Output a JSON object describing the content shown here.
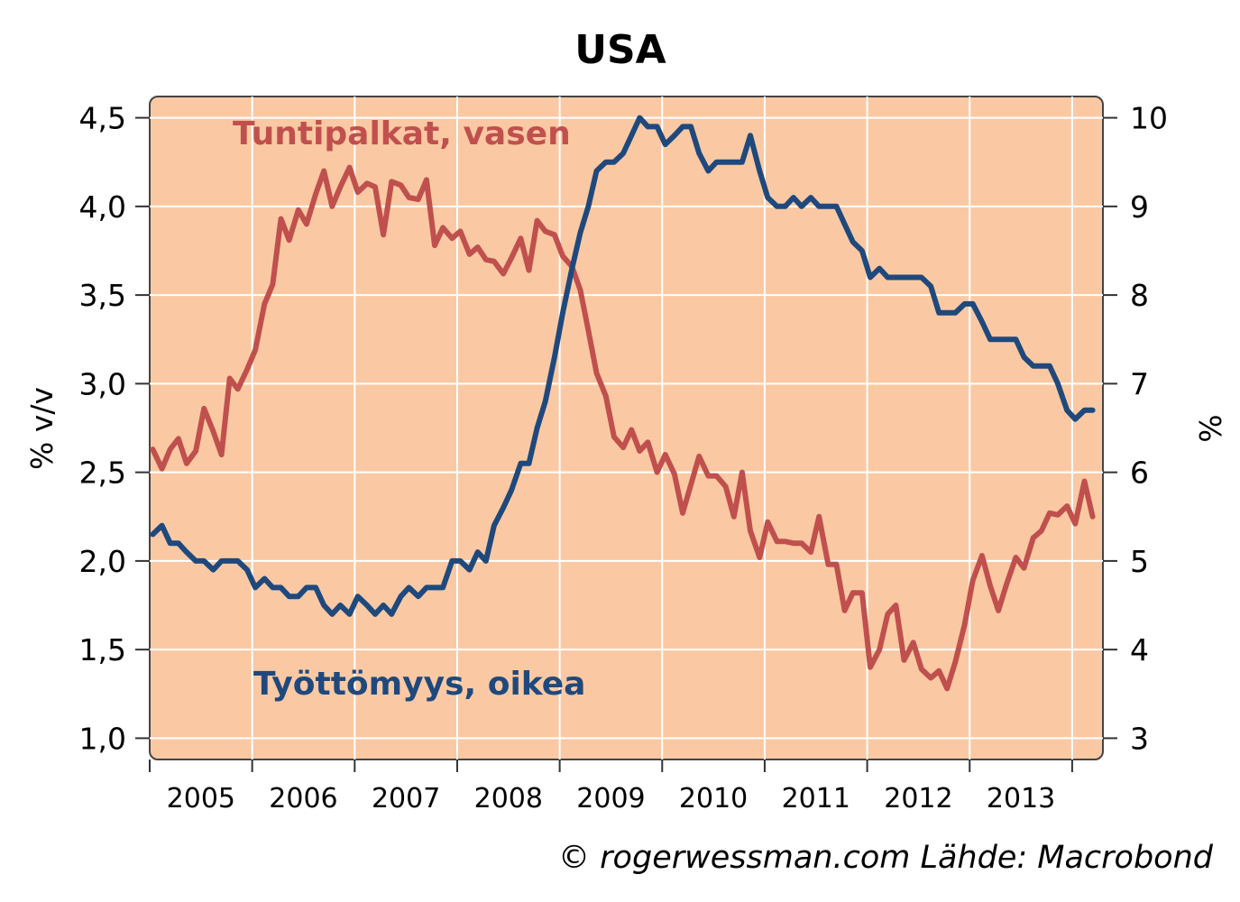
{
  "chart_data": {
    "type": "line",
    "title": "USA",
    "source": "© rogerwessman.com Lähde: Macrobond",
    "plot_background": "#fac9a3",
    "grid": true,
    "left_axis": {
      "label": "% v/v",
      "ylim": [
        0.88,
        4.62
      ],
      "ticks": [
        1.0,
        1.5,
        2.0,
        2.5,
        3.0,
        3.5,
        4.0,
        4.5
      ],
      "tick_labels": [
        "1,0",
        "1,5",
        "2,0",
        "2,5",
        "3,0",
        "3,5",
        "4,0",
        "4,5"
      ]
    },
    "right_axis": {
      "label": "%",
      "ylim": [
        2.76,
        10.24
      ],
      "ticks": [
        3,
        4,
        5,
        6,
        7,
        8,
        9,
        10
      ],
      "tick_labels": [
        "3",
        "4",
        "5",
        "6",
        "7",
        "8",
        "9",
        "10"
      ]
    },
    "x_axis": {
      "xlim": [
        2004.0,
        2013.3
      ],
      "ticks": [
        2004.0,
        2005.0,
        2006.0,
        2007.0,
        2008.0,
        2009.0,
        2010.0,
        2011.0,
        2012.0,
        2013.0
      ],
      "tick_labels": [
        "2005",
        "2006",
        "2007",
        "2008",
        "2009",
        "2010",
        "2011",
        "2012",
        "2013"
      ],
      "tick_label_positions": [
        2004.5,
        2005.5,
        2006.5,
        2007.5,
        2008.5,
        2009.5,
        2010.5,
        2011.5,
        2012.5
      ]
    },
    "series": [
      {
        "name": "Tuntipalkat, vasen",
        "axis": "left",
        "color": "#c0504d",
        "points": [
          [
            2004.03,
            2.63
          ],
          [
            2004.12,
            2.52
          ],
          [
            2004.2,
            2.63
          ],
          [
            2004.28,
            2.69
          ],
          [
            2004.36,
            2.55
          ],
          [
            2004.45,
            2.62
          ],
          [
            2004.53,
            2.86
          ],
          [
            2004.62,
            2.73
          ],
          [
            2004.7,
            2.6
          ],
          [
            2004.78,
            3.03
          ],
          [
            2004.86,
            2.97
          ],
          [
            2004.95,
            3.08
          ],
          [
            2005.03,
            3.19
          ],
          [
            2005.12,
            3.45
          ],
          [
            2005.2,
            3.56
          ],
          [
            2005.28,
            3.93
          ],
          [
            2005.36,
            3.81
          ],
          [
            2005.45,
            3.98
          ],
          [
            2005.53,
            3.9
          ],
          [
            2005.62,
            4.07
          ],
          [
            2005.7,
            4.2
          ],
          [
            2005.78,
            4.0
          ],
          [
            2005.86,
            4.11
          ],
          [
            2005.95,
            4.22
          ],
          [
            2006.03,
            4.08
          ],
          [
            2006.12,
            4.13
          ],
          [
            2006.2,
            4.11
          ],
          [
            2006.28,
            3.84
          ],
          [
            2006.36,
            4.14
          ],
          [
            2006.45,
            4.12
          ],
          [
            2006.53,
            4.05
          ],
          [
            2006.62,
            4.04
          ],
          [
            2006.7,
            4.15
          ],
          [
            2006.78,
            3.78
          ],
          [
            2006.86,
            3.88
          ],
          [
            2006.95,
            3.82
          ],
          [
            2007.03,
            3.86
          ],
          [
            2007.12,
            3.73
          ],
          [
            2007.2,
            3.77
          ],
          [
            2007.28,
            3.7
          ],
          [
            2007.36,
            3.69
          ],
          [
            2007.45,
            3.62
          ],
          [
            2007.53,
            3.71
          ],
          [
            2007.62,
            3.82
          ],
          [
            2007.7,
            3.64
          ],
          [
            2007.78,
            3.92
          ],
          [
            2007.86,
            3.86
          ],
          [
            2007.95,
            3.84
          ],
          [
            2008.03,
            3.72
          ],
          [
            2008.12,
            3.66
          ],
          [
            2008.2,
            3.53
          ],
          [
            2008.28,
            3.3
          ],
          [
            2008.36,
            3.06
          ],
          [
            2008.45,
            2.93
          ],
          [
            2008.53,
            2.7
          ],
          [
            2008.62,
            2.64
          ],
          [
            2008.7,
            2.74
          ],
          [
            2008.78,
            2.62
          ],
          [
            2008.86,
            2.67
          ],
          [
            2008.95,
            2.5
          ],
          [
            2009.03,
            2.6
          ],
          [
            2009.12,
            2.49
          ],
          [
            2009.2,
            2.27
          ],
          [
            2009.28,
            2.43
          ],
          [
            2009.36,
            2.59
          ],
          [
            2009.45,
            2.48
          ],
          [
            2009.53,
            2.48
          ],
          [
            2009.62,
            2.42
          ],
          [
            2009.7,
            2.25
          ],
          [
            2009.78,
            2.5
          ],
          [
            2009.86,
            2.17
          ],
          [
            2009.95,
            2.02
          ],
          [
            2010.03,
            2.22
          ],
          [
            2010.12,
            2.11
          ],
          [
            2010.2,
            2.11
          ],
          [
            2010.28,
            2.1
          ],
          [
            2010.36,
            2.1
          ],
          [
            2010.45,
            2.05
          ],
          [
            2010.53,
            2.25
          ],
          [
            2010.62,
            1.98
          ],
          [
            2010.7,
            1.98
          ],
          [
            2010.78,
            1.72
          ],
          [
            2010.86,
            1.82
          ],
          [
            2010.95,
            1.82
          ],
          [
            2011.03,
            1.4
          ],
          [
            2011.12,
            1.5
          ],
          [
            2011.2,
            1.7
          ],
          [
            2011.28,
            1.75
          ],
          [
            2011.36,
            1.44
          ],
          [
            2011.45,
            1.54
          ],
          [
            2011.53,
            1.39
          ],
          [
            2011.62,
            1.34
          ],
          [
            2011.7,
            1.38
          ],
          [
            2011.78,
            1.28
          ],
          [
            2011.86,
            1.43
          ],
          [
            2011.95,
            1.64
          ],
          [
            2012.03,
            1.89
          ],
          [
            2012.12,
            2.03
          ],
          [
            2012.2,
            1.86
          ],
          [
            2012.28,
            1.72
          ],
          [
            2012.36,
            1.87
          ],
          [
            2012.45,
            2.02
          ],
          [
            2012.53,
            1.96
          ],
          [
            2012.62,
            2.13
          ],
          [
            2012.7,
            2.17
          ],
          [
            2012.78,
            2.27
          ],
          [
            2012.86,
            2.26
          ],
          [
            2012.95,
            2.31
          ],
          [
            2013.03,
            2.21
          ],
          [
            2013.12,
            2.45
          ],
          [
            2013.2,
            2.25
          ]
        ]
      },
      {
        "name": "Työttömyys, oikea",
        "axis": "right",
        "color": "#1f497d",
        "points": [
          [
            2004.03,
            5.3
          ],
          [
            2004.12,
            5.4
          ],
          [
            2004.2,
            5.2
          ],
          [
            2004.28,
            5.2
          ],
          [
            2004.36,
            5.1
          ],
          [
            2004.45,
            5.0
          ],
          [
            2004.53,
            5.0
          ],
          [
            2004.62,
            4.9
          ],
          [
            2004.7,
            5.0
          ],
          [
            2004.78,
            5.0
          ],
          [
            2004.86,
            5.0
          ],
          [
            2004.95,
            4.9
          ],
          [
            2005.03,
            4.7
          ],
          [
            2005.12,
            4.8
          ],
          [
            2005.2,
            4.7
          ],
          [
            2005.28,
            4.7
          ],
          [
            2005.36,
            4.6
          ],
          [
            2005.45,
            4.6
          ],
          [
            2005.53,
            4.7
          ],
          [
            2005.62,
            4.7
          ],
          [
            2005.7,
            4.5
          ],
          [
            2005.78,
            4.4
          ],
          [
            2005.86,
            4.5
          ],
          [
            2005.95,
            4.4
          ],
          [
            2006.03,
            4.6
          ],
          [
            2006.12,
            4.5
          ],
          [
            2006.2,
            4.4
          ],
          [
            2006.28,
            4.5
          ],
          [
            2006.36,
            4.4
          ],
          [
            2006.45,
            4.6
          ],
          [
            2006.53,
            4.7
          ],
          [
            2006.62,
            4.6
          ],
          [
            2006.7,
            4.7
          ],
          [
            2006.78,
            4.7
          ],
          [
            2006.86,
            4.7
          ],
          [
            2006.95,
            5.0
          ],
          [
            2007.03,
            5.0
          ],
          [
            2007.12,
            4.9
          ],
          [
            2007.2,
            5.1
          ],
          [
            2007.28,
            5.0
          ],
          [
            2007.36,
            5.4
          ],
          [
            2007.45,
            5.6
          ],
          [
            2007.53,
            5.8
          ],
          [
            2007.62,
            6.1
          ],
          [
            2007.7,
            6.1
          ],
          [
            2007.78,
            6.5
          ],
          [
            2007.86,
            6.8
          ],
          [
            2007.95,
            7.3
          ],
          [
            2008.03,
            7.8
          ],
          [
            2008.12,
            8.3
          ],
          [
            2008.2,
            8.7
          ],
          [
            2008.28,
            9.0
          ],
          [
            2008.36,
            9.4
          ],
          [
            2008.45,
            9.5
          ],
          [
            2008.53,
            9.5
          ],
          [
            2008.62,
            9.6
          ],
          [
            2008.7,
            9.8
          ],
          [
            2008.78,
            10.0
          ],
          [
            2008.86,
            9.9
          ],
          [
            2008.95,
            9.9
          ],
          [
            2009.03,
            9.7
          ],
          [
            2009.12,
            9.8
          ],
          [
            2009.2,
            9.9
          ],
          [
            2009.28,
            9.9
          ],
          [
            2009.36,
            9.6
          ],
          [
            2009.45,
            9.4
          ],
          [
            2009.53,
            9.5
          ],
          [
            2009.62,
            9.5
          ],
          [
            2009.7,
            9.5
          ],
          [
            2009.78,
            9.5
          ],
          [
            2009.86,
            9.8
          ],
          [
            2009.95,
            9.4
          ],
          [
            2010.03,
            9.1
          ],
          [
            2010.12,
            9.0
          ],
          [
            2010.2,
            9.0
          ],
          [
            2010.28,
            9.1
          ],
          [
            2010.36,
            9.0
          ],
          [
            2010.45,
            9.1
          ],
          [
            2010.53,
            9.0
          ],
          [
            2010.62,
            9.0
          ],
          [
            2010.7,
            9.0
          ],
          [
            2010.78,
            8.8
          ],
          [
            2010.86,
            8.6
          ],
          [
            2010.95,
            8.5
          ],
          [
            2011.03,
            8.2
          ],
          [
            2011.12,
            8.3
          ],
          [
            2011.2,
            8.2
          ],
          [
            2011.28,
            8.2
          ],
          [
            2011.36,
            8.2
          ],
          [
            2011.45,
            8.2
          ],
          [
            2011.53,
            8.2
          ],
          [
            2011.62,
            8.1
          ],
          [
            2011.7,
            7.8
          ],
          [
            2011.78,
            7.8
          ],
          [
            2011.86,
            7.8
          ],
          [
            2011.95,
            7.9
          ],
          [
            2012.03,
            7.9
          ],
          [
            2012.12,
            7.7
          ],
          [
            2012.2,
            7.5
          ],
          [
            2012.28,
            7.5
          ],
          [
            2012.36,
            7.5
          ],
          [
            2012.45,
            7.5
          ],
          [
            2012.53,
            7.3
          ],
          [
            2012.62,
            7.2
          ],
          [
            2012.7,
            7.2
          ],
          [
            2012.78,
            7.2
          ],
          [
            2012.86,
            7.0
          ],
          [
            2012.95,
            6.7
          ],
          [
            2013.03,
            6.6
          ],
          [
            2013.12,
            6.7
          ],
          [
            2013.2,
            6.7
          ]
        ]
      }
    ]
  }
}
